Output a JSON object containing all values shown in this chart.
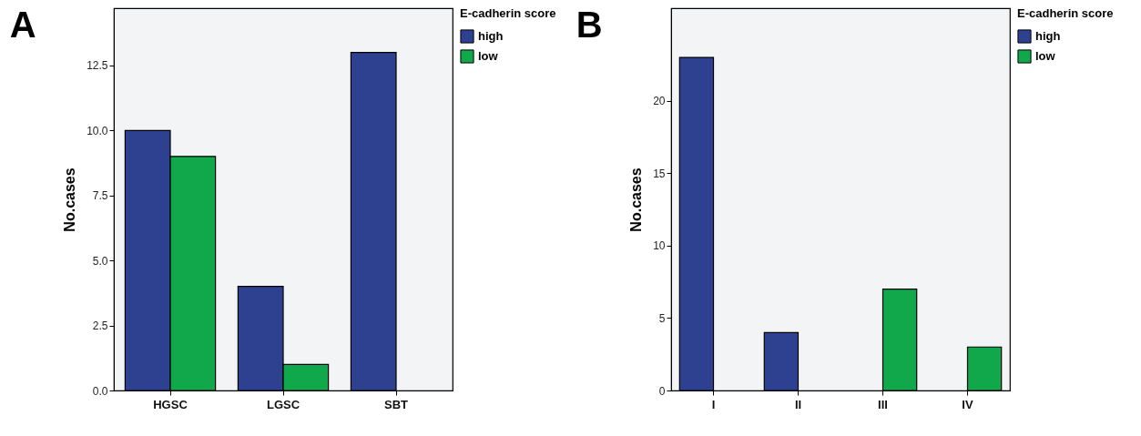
{
  "chart_data": [
    {
      "type": "bar",
      "title": "A",
      "ylabel": "No.cases",
      "legend_title": "E-cadherin score",
      "legend": "top right",
      "categories": [
        "HGSC",
        "LGSC",
        "SBT"
      ],
      "series": [
        {
          "name": "high",
          "color": "#2e4190",
          "values": [
            10,
            4,
            13
          ]
        },
        {
          "name": "low",
          "color": "#10a84a",
          "values": [
            9,
            1,
            null
          ]
        }
      ],
      "ylim": [
        0,
        14.7
      ],
      "yticks": [
        {
          "value": 0,
          "label": "0.0"
        },
        {
          "value": 2.5,
          "label": "2.5"
        },
        {
          "value": 5,
          "label": "5.0"
        },
        {
          "value": 7.5,
          "label": "7.5"
        },
        {
          "value": 10,
          "label": "10.0"
        },
        {
          "value": 12.5,
          "label": "12.5"
        }
      ]
    },
    {
      "type": "bar",
      "title": "B",
      "ylabel": "No.cases",
      "legend_title": "E-cadherin score",
      "legend": "top right",
      "categories": [
        "I",
        "II",
        "III",
        "IV"
      ],
      "series": [
        {
          "name": "high",
          "color": "#2e4190",
          "values": [
            23,
            4,
            null,
            null
          ]
        },
        {
          "name": "low",
          "color": "#10a84a",
          "values": [
            null,
            null,
            7,
            3
          ]
        }
      ],
      "ylim": [
        0,
        26.4
      ],
      "yticks": [
        0,
        5,
        10,
        15,
        20
      ]
    }
  ]
}
